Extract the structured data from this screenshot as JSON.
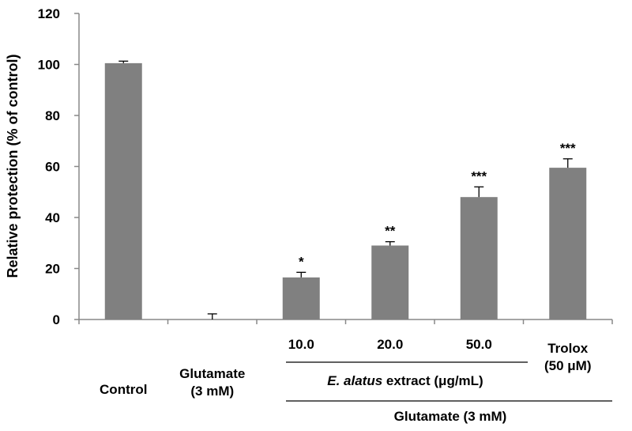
{
  "chart_data": {
    "type": "bar",
    "title": "",
    "ylabel": "Relative protection (% of control)",
    "ylim": [
      0,
      120
    ],
    "yticks": [
      0,
      20,
      40,
      60,
      80,
      100,
      120
    ],
    "bar_color": "#808080",
    "bars": [
      {
        "value": 100.5,
        "error": 0.8,
        "sig": "",
        "label_lines": [
          "Control"
        ]
      },
      {
        "value": 0.0,
        "error": 2.2,
        "sig": "",
        "label_lines": [
          "Glutamate",
          "(3 mM)"
        ]
      },
      {
        "value": 16.5,
        "error": 2.0,
        "sig": "*",
        "label_lines": [
          "10.0"
        ]
      },
      {
        "value": 29.0,
        "error": 1.5,
        "sig": "**",
        "label_lines": [
          "20.0"
        ]
      },
      {
        "value": 48.0,
        "error": 4.0,
        "sig": "***",
        "label_lines": [
          "50.0"
        ]
      },
      {
        "value": 59.5,
        "error": 3.5,
        "sig": "***",
        "label_lines": [
          "Trolox",
          "(50 μM)"
        ]
      }
    ],
    "group_labels": {
      "extract_italic": "E. alatus",
      "extract_rest": " extract (μg/mL)",
      "glutamate": "Glutamate (3 mM)"
    }
  }
}
